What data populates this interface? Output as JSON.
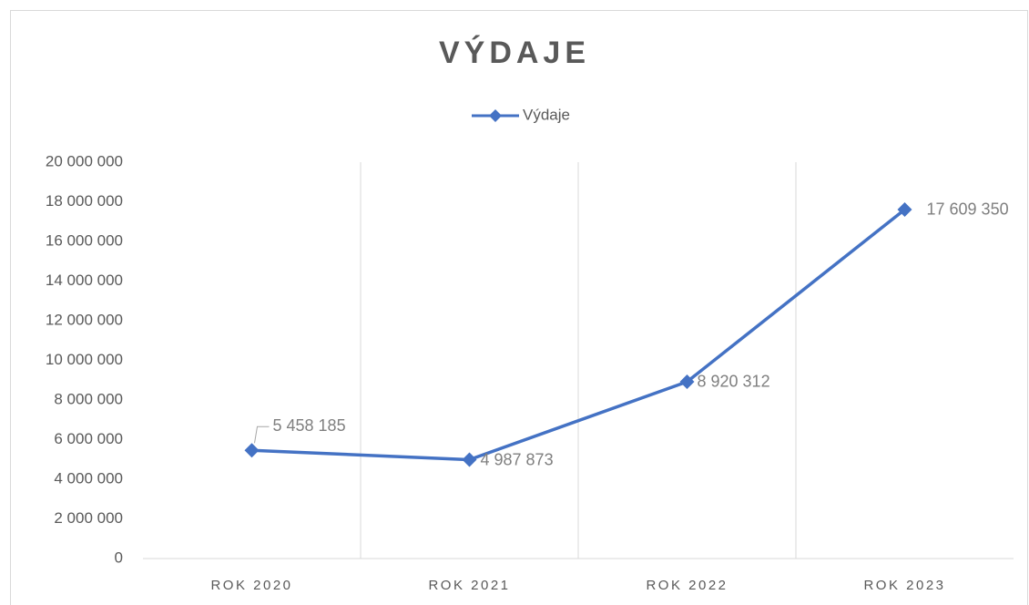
{
  "chart_data": {
    "type": "line",
    "title": "VÝDAJE",
    "categories": [
      "ROK 2020",
      "ROK 2021",
      "ROK 2022",
      "ROK 2023"
    ],
    "series": [
      {
        "name": "Výdaje",
        "color": "#4472c4",
        "values": [
          5458185,
          4987873,
          8920312,
          17609350
        ],
        "value_labels": [
          "5 458 185",
          "4 987 873",
          "8 920 312",
          "17 609 350"
        ]
      }
    ],
    "ylim": [
      0,
      20000000
    ],
    "yticks": [
      {
        "value": 0,
        "label": "0"
      },
      {
        "value": 2000000,
        "label": "2 000 000"
      },
      {
        "value": 4000000,
        "label": "4 000 000"
      },
      {
        "value": 6000000,
        "label": "6 000 000"
      },
      {
        "value": 8000000,
        "label": "8 000 000"
      },
      {
        "value": 10000000,
        "label": "10 000 000"
      },
      {
        "value": 12000000,
        "label": "12 000 000"
      },
      {
        "value": 14000000,
        "label": "14 000 000"
      },
      {
        "value": 16000000,
        "label": "16 000 000"
      },
      {
        "value": 18000000,
        "label": "18 000 000"
      },
      {
        "value": 20000000,
        "label": "20 000 000"
      }
    ],
    "legend": "top"
  }
}
